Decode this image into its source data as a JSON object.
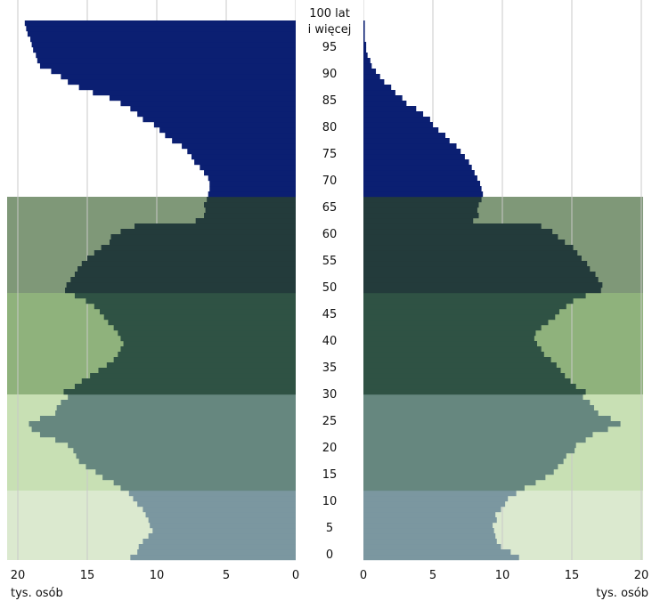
{
  "chart_data": {
    "type": "bar",
    "orientation": "horizontal-pyramid",
    "age_axis": {
      "tick_labels": [
        "0",
        "5",
        "10",
        "15",
        "20",
        "25",
        "30",
        "35",
        "40",
        "45",
        "50",
        "55",
        "60",
        "65",
        "70",
        "75",
        "80",
        "85",
        "90",
        "95"
      ],
      "top_label_line1": "100 lat",
      "top_label_line2": "i więcej"
    },
    "x_axis": {
      "left_ticks": [
        "20",
        "15",
        "10",
        "5",
        "0"
      ],
      "right_ticks": [
        "0",
        "5",
        "10",
        "15",
        "20"
      ],
      "left_unit": "tys. osób",
      "right_unit": "tys. osób",
      "range": [
        0,
        20
      ],
      "grid": true
    },
    "bands": [
      {
        "from_age": 0,
        "to_age": 12,
        "color": "#dbe9cf"
      },
      {
        "from_age": 13,
        "to_age": 30,
        "color": "#c8e0b4"
      },
      {
        "from_age": 31,
        "to_age": 49,
        "color": "#8fb27c"
      },
      {
        "from_age": 50,
        "to_age": 67,
        "color": "#7f9878"
      },
      {
        "from_age": 68,
        "to_age": 100,
        "color": "#ffffff"
      }
    ],
    "bar_colors": [
      {
        "from_age": 0,
        "to_age": 12,
        "color": "#7b97a0"
      },
      {
        "from_age": 13,
        "to_age": 30,
        "color": "#66877f"
      },
      {
        "from_age": 31,
        "to_age": 49,
        "color": "#2f5244"
      },
      {
        "from_age": 50,
        "to_age": 67,
        "color": "#233b3b"
      },
      {
        "from_age": 68,
        "to_age": 100,
        "color": "#0b1f72"
      }
    ],
    "series": [
      {
        "side": "left",
        "values": [
          11.9,
          11.4,
          11.3,
          11.0,
          10.6,
          10.3,
          10.5,
          10.6,
          10.8,
          11.0,
          11.4,
          11.7,
          12.0,
          12.6,
          13.1,
          13.9,
          14.4,
          15.1,
          15.6,
          15.8,
          16.0,
          16.4,
          17.3,
          18.4,
          19.0,
          19.2,
          18.4,
          17.3,
          17.2,
          16.9,
          16.4,
          16.7,
          15.9,
          15.4,
          14.8,
          14.2,
          13.6,
          13.1,
          12.8,
          12.6,
          12.4,
          12.6,
          12.8,
          13.1,
          13.5,
          13.8,
          14.1,
          14.5,
          15.1,
          15.9,
          16.6,
          16.5,
          16.2,
          15.9,
          15.7,
          15.4,
          15.0,
          14.5,
          14.0,
          13.4,
          13.3,
          12.6,
          11.6,
          7.2,
          6.6,
          6.5,
          6.6,
          6.4,
          6.3,
          6.2,
          6.2,
          6.3,
          6.6,
          6.9,
          7.3,
          7.5,
          7.8,
          8.2,
          8.9,
          9.4,
          9.8,
          10.2,
          11.0,
          11.4,
          11.9,
          12.6,
          13.4,
          14.6,
          15.6,
          16.4,
          16.9,
          17.6,
          18.4,
          18.6,
          18.7,
          18.9,
          19.0,
          19.1,
          19.3,
          19.4,
          19.5
        ]
      },
      {
        "side": "right",
        "values": [
          11.2,
          10.6,
          9.9,
          9.6,
          9.5,
          9.4,
          9.3,
          9.6,
          9.5,
          9.9,
          10.2,
          10.4,
          11.0,
          11.6,
          12.4,
          13.1,
          13.7,
          14.0,
          14.4,
          14.6,
          15.2,
          15.3,
          16.0,
          16.5,
          17.6,
          18.5,
          17.8,
          16.9,
          16.6,
          16.3,
          15.8,
          16.0,
          15.3,
          14.9,
          14.5,
          14.2,
          13.9,
          13.5,
          13.0,
          12.8,
          12.5,
          12.3,
          12.4,
          12.8,
          13.3,
          13.8,
          14.1,
          14.6,
          15.1,
          16.0,
          17.1,
          17.2,
          16.9,
          16.7,
          16.3,
          16.1,
          15.7,
          15.4,
          15.1,
          14.5,
          14.0,
          13.6,
          12.8,
          7.9,
          8.3,
          8.2,
          8.3,
          8.5,
          8.6,
          8.5,
          8.4,
          8.2,
          8.0,
          7.8,
          7.6,
          7.3,
          7.0,
          6.7,
          6.2,
          5.9,
          5.4,
          5.0,
          4.8,
          4.3,
          3.8,
          3.1,
          2.8,
          2.3,
          2.0,
          1.5,
          1.2,
          0.9,
          0.6,
          0.5,
          0.3,
          0.2,
          0.2,
          0.1,
          0.1,
          0.1,
          0.1
        ]
      }
    ]
  }
}
